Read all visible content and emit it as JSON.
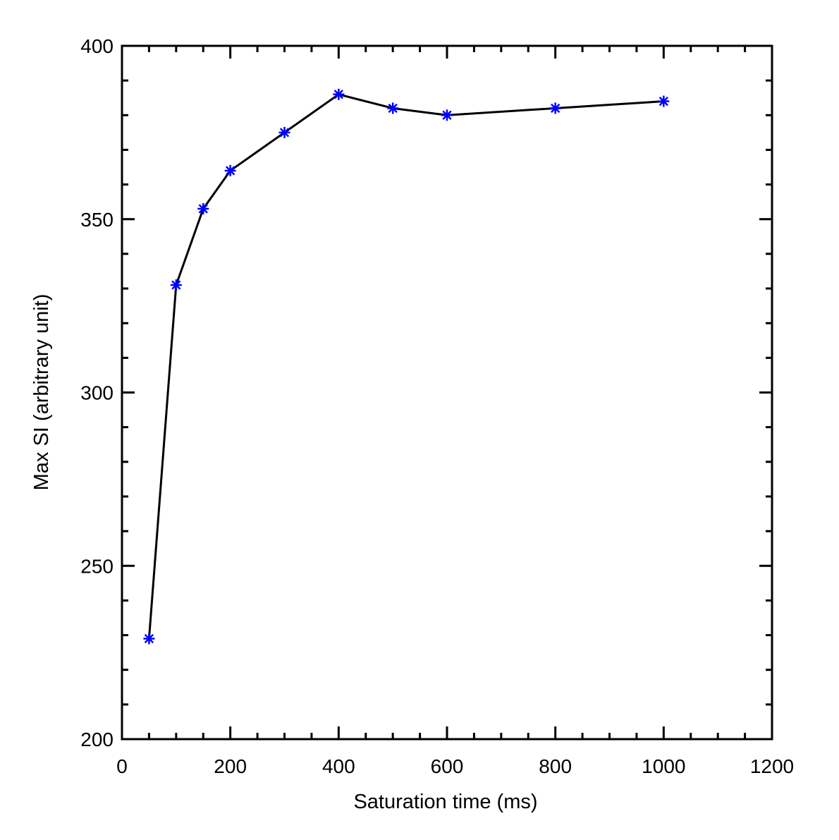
{
  "chart_data": {
    "type": "line",
    "title": "",
    "xlabel": "Saturation time (ms)",
    "ylabel": "Max SI (arbitrary unit)",
    "xlim": [
      0,
      1200
    ],
    "ylim": [
      200,
      400
    ],
    "x_ticks": [
      0,
      200,
      400,
      600,
      800,
      1000,
      1200
    ],
    "y_ticks": [
      200,
      250,
      300,
      350,
      400
    ],
    "x_minor_step": 50,
    "y_minor_step": 10,
    "grid": false,
    "legend": "none",
    "series": [
      {
        "x": [
          50,
          100,
          150,
          200,
          300,
          400,
          500,
          600,
          800,
          1000
        ],
        "y": [
          229,
          331,
          353,
          364,
          375,
          386,
          382,
          380,
          382,
          384
        ],
        "line_color": "#000000",
        "marker": "asterisk",
        "marker_color": "#0000ff"
      }
    ]
  }
}
